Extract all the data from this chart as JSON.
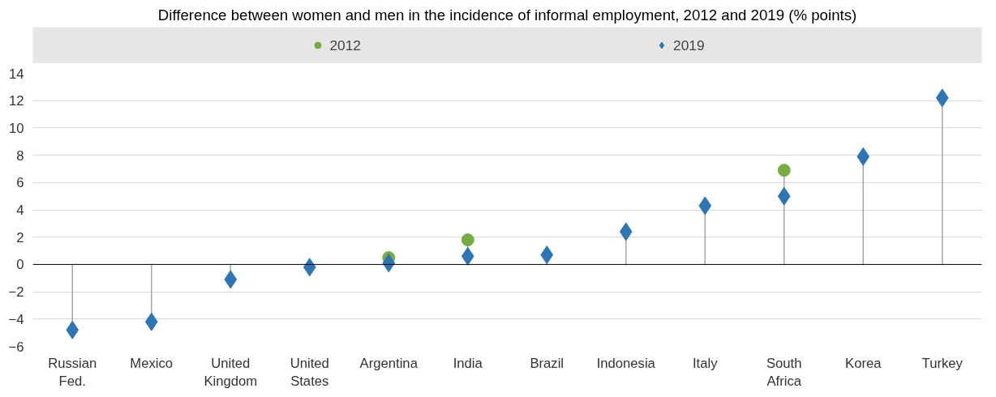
{
  "chart_data": {
    "type": "lollipop",
    "title": "Difference between women and men in the incidence of informal employment, 2012 and 2019 (% points)",
    "categories": [
      "Russian Fed.",
      "Mexico",
      "United Kingdom",
      "United States",
      "Argentina",
      "India",
      "Brazil",
      "Indonesia",
      "Italy",
      "South Africa",
      "Korea",
      "Turkey"
    ],
    "series": [
      {
        "name": "2012",
        "color": "#77ac43",
        "marker": "circle",
        "values": [
          null,
          null,
          null,
          null,
          0.5,
          1.8,
          null,
          null,
          null,
          6.9,
          null,
          null
        ]
      },
      {
        "name": "2019",
        "color": "#2e75b6",
        "marker": "diamond",
        "values": [
          -4.8,
          -4.2,
          -1.1,
          -0.2,
          0.1,
          0.6,
          0.7,
          2.4,
          4.3,
          5.0,
          7.9,
          12.2
        ]
      }
    ],
    "ylim": [
      -6,
      14
    ],
    "yticks": [
      -6,
      -4,
      -2,
      0,
      2,
      4,
      6,
      8,
      10,
      12,
      14
    ],
    "ref_lines": [
      {
        "axis": "y",
        "value": 0,
        "color": "#000000"
      }
    ],
    "grid": "y",
    "legend": "top"
  }
}
